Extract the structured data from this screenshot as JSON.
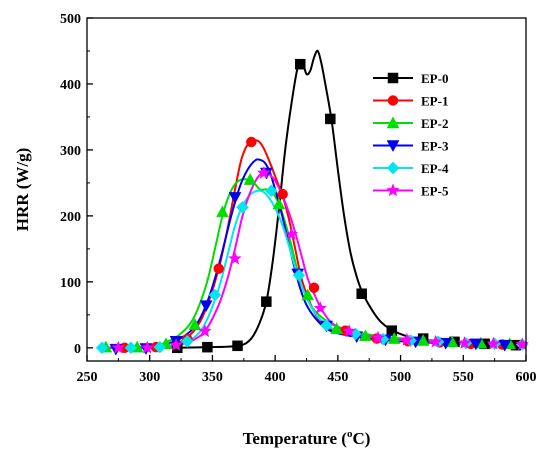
{
  "chart_data": {
    "type": "line",
    "xlabel": "Temperature (",
    "xlabel_sup": "o",
    "xlabel_suffix": "C)",
    "ylabel": "HRR (W/g)",
    "xlim": [
      250,
      600
    ],
    "ylim": [
      -20,
      500
    ],
    "x_ticks": [
      250,
      300,
      350,
      400,
      450,
      500,
      550,
      600
    ],
    "y_ticks": [
      0,
      100,
      200,
      300,
      400,
      500
    ],
    "legend_position": "top-right",
    "grid": false,
    "series": [
      {
        "name": "EP-0",
        "color": "#000000",
        "marker": "square",
        "curve": [
          [
            262,
            0
          ],
          [
            300,
            0
          ],
          [
            320,
            0
          ],
          [
            345,
            1
          ],
          [
            370,
            3
          ],
          [
            380,
            12
          ],
          [
            387,
            35
          ],
          [
            393,
            70
          ],
          [
            398,
            130
          ],
          [
            403,
            210
          ],
          [
            408,
            300
          ],
          [
            413,
            370
          ],
          [
            418,
            425
          ],
          [
            422,
            430
          ],
          [
            425,
            415
          ],
          [
            428,
            420
          ],
          [
            431,
            440
          ],
          [
            434,
            450
          ],
          [
            437,
            430
          ],
          [
            440,
            400
          ],
          [
            445,
            345
          ],
          [
            450,
            270
          ],
          [
            455,
            200
          ],
          [
            460,
            145
          ],
          [
            465,
            108
          ],
          [
            470,
            82
          ],
          [
            478,
            55
          ],
          [
            485,
            38
          ],
          [
            495,
            25
          ],
          [
            510,
            15
          ],
          [
            530,
            10
          ],
          [
            560,
            6
          ],
          [
            597,
            4
          ]
        ],
        "markers": [
          [
            322,
            0
          ],
          [
            346,
            1
          ],
          [
            370,
            3
          ],
          [
            393,
            70
          ],
          [
            420,
            430
          ],
          [
            444,
            347
          ],
          [
            469,
            82
          ],
          [
            493,
            26
          ],
          [
            518,
            14
          ],
          [
            543,
            9
          ],
          [
            567,
            6
          ],
          [
            592,
            4
          ]
        ]
      },
      {
        "name": "EP-1",
        "color": "#ff0000",
        "marker": "circle",
        "curve": [
          [
            262,
            0
          ],
          [
            300,
            1
          ],
          [
            320,
            5
          ],
          [
            335,
            25
          ],
          [
            345,
            60
          ],
          [
            355,
            120
          ],
          [
            362,
            180
          ],
          [
            368,
            240
          ],
          [
            373,
            285
          ],
          [
            378,
            308
          ],
          [
            383,
            314
          ],
          [
            387,
            313
          ],
          [
            391,
            302
          ],
          [
            396,
            280
          ],
          [
            401,
            255
          ],
          [
            406,
            230
          ],
          [
            411,
            195
          ],
          [
            416,
            150
          ],
          [
            421,
            105
          ],
          [
            427,
            72
          ],
          [
            433,
            48
          ],
          [
            440,
            33
          ],
          [
            450,
            25
          ],
          [
            470,
            16
          ],
          [
            490,
            12
          ],
          [
            520,
            8
          ],
          [
            560,
            6
          ],
          [
            597,
            4
          ]
        ],
        "markers": [
          [
            280,
            0
          ],
          [
            305,
            1
          ],
          [
            330,
            13
          ],
          [
            355,
            120
          ],
          [
            381,
            312
          ],
          [
            406,
            233
          ],
          [
            431,
            91
          ],
          [
            456,
            26
          ],
          [
            481,
            14
          ],
          [
            506,
            10
          ],
          [
            531,
            8
          ],
          [
            556,
            6
          ],
          [
            581,
            5
          ]
        ]
      },
      {
        "name": "EP-2",
        "color": "#00dd00",
        "marker": "triangle-up",
        "curve": [
          [
            262,
            0
          ],
          [
            300,
            2
          ],
          [
            315,
            10
          ],
          [
            325,
            22
          ],
          [
            335,
            45
          ],
          [
            345,
            95
          ],
          [
            352,
            150
          ],
          [
            358,
            200
          ],
          [
            363,
            230
          ],
          [
            368,
            248
          ],
          [
            373,
            255
          ],
          [
            378,
            255
          ],
          [
            383,
            250
          ],
          [
            388,
            240
          ],
          [
            393,
            240
          ],
          [
            398,
            235
          ],
          [
            403,
            218
          ],
          [
            408,
            190
          ],
          [
            413,
            155
          ],
          [
            418,
            115
          ],
          [
            423,
            85
          ],
          [
            430,
            60
          ],
          [
            440,
            42
          ],
          [
            450,
            32
          ],
          [
            470,
            22
          ],
          [
            490,
            16
          ],
          [
            520,
            12
          ],
          [
            560,
            8
          ],
          [
            597,
            6
          ]
        ],
        "markers": [
          [
            265,
            1
          ],
          [
            290,
            1
          ],
          [
            313,
            6
          ],
          [
            336,
            35
          ],
          [
            358,
            206
          ],
          [
            380,
            255
          ],
          [
            403,
            218
          ],
          [
            426,
            80
          ],
          [
            449,
            29
          ],
          [
            472,
            18
          ],
          [
            495,
            14
          ],
          [
            518,
            11
          ],
          [
            541,
            9
          ],
          [
            564,
            7
          ],
          [
            587,
            6
          ]
        ]
      },
      {
        "name": "EP-3",
        "color": "#0000ee",
        "marker": "triangle-down",
        "curve": [
          [
            262,
            0
          ],
          [
            300,
            1
          ],
          [
            320,
            10
          ],
          [
            335,
            30
          ],
          [
            345,
            65
          ],
          [
            355,
            125
          ],
          [
            365,
            200
          ],
          [
            372,
            245
          ],
          [
            378,
            270
          ],
          [
            384,
            284
          ],
          [
            388,
            285
          ],
          [
            392,
            280
          ],
          [
            396,
            265
          ],
          [
            400,
            240
          ],
          [
            405,
            205
          ],
          [
            410,
            165
          ],
          [
            415,
            125
          ],
          [
            420,
            90
          ],
          [
            425,
            65
          ],
          [
            432,
            45
          ],
          [
            440,
            30
          ],
          [
            450,
            22
          ],
          [
            470,
            15
          ],
          [
            500,
            10
          ],
          [
            540,
            7
          ],
          [
            597,
            4
          ]
        ],
        "markers": [
          [
            273,
            -2
          ],
          [
            297,
            -1
          ],
          [
            321,
            10
          ],
          [
            345,
            64
          ],
          [
            368,
            228
          ],
          [
            393,
            265
          ],
          [
            418,
            112
          ],
          [
            441,
            33
          ],
          [
            465,
            17
          ],
          [
            488,
            12
          ],
          [
            512,
            9
          ],
          [
            536,
            7
          ],
          [
            560,
            6
          ],
          [
            583,
            4
          ]
        ]
      },
      {
        "name": "EP-4",
        "color": "#00e5ee",
        "marker": "diamond",
        "curve": [
          [
            262,
            0
          ],
          [
            300,
            0
          ],
          [
            320,
            5
          ],
          [
            335,
            15
          ],
          [
            345,
            40
          ],
          [
            355,
            90
          ],
          [
            362,
            140
          ],
          [
            368,
            185
          ],
          [
            374,
            215
          ],
          [
            380,
            232
          ],
          [
            386,
            238
          ],
          [
            391,
            236
          ],
          [
            396,
            225
          ],
          [
            401,
            208
          ],
          [
            406,
            185
          ],
          [
            411,
            155
          ],
          [
            416,
            122
          ],
          [
            421,
            95
          ],
          [
            426,
            72
          ],
          [
            432,
            52
          ],
          [
            440,
            36
          ],
          [
            450,
            26
          ],
          [
            470,
            18
          ],
          [
            500,
            12
          ],
          [
            540,
            8
          ],
          [
            597,
            5
          ]
        ],
        "markers": [
          [
            262,
            0
          ],
          [
            285,
            0
          ],
          [
            308,
            1
          ],
          [
            330,
            10
          ],
          [
            352,
            80
          ],
          [
            374,
            213
          ],
          [
            397,
            238
          ],
          [
            419,
            110
          ],
          [
            441,
            34
          ],
          [
            464,
            21
          ],
          [
            486,
            13
          ],
          [
            508,
            11
          ],
          [
            530,
            9
          ],
          [
            552,
            7
          ],
          [
            575,
            6
          ],
          [
            597,
            5
          ]
        ]
      },
      {
        "name": "EP-5",
        "color": "#ff00ff",
        "marker": "star",
        "curve": [
          [
            262,
            0
          ],
          [
            300,
            0
          ],
          [
            320,
            3
          ],
          [
            335,
            12
          ],
          [
            345,
            28
          ],
          [
            355,
            65
          ],
          [
            362,
            105
          ],
          [
            368,
            150
          ],
          [
            374,
            200
          ],
          [
            380,
            235
          ],
          [
            386,
            258
          ],
          [
            391,
            265
          ],
          [
            396,
            262
          ],
          [
            401,
            250
          ],
          [
            406,
            230
          ],
          [
            411,
            205
          ],
          [
            416,
            175
          ],
          [
            421,
            140
          ],
          [
            426,
            105
          ],
          [
            432,
            78
          ],
          [
            438,
            55
          ],
          [
            445,
            38
          ],
          [
            455,
            27
          ],
          [
            470,
            19
          ],
          [
            500,
            12
          ],
          [
            540,
            8
          ],
          [
            597,
            5
          ]
        ],
        "markers": [
          [
            275,
            0
          ],
          [
            298,
            0
          ],
          [
            321,
            4
          ],
          [
            344,
            25
          ],
          [
            368,
            135
          ],
          [
            391,
            265
          ],
          [
            413,
            172
          ],
          [
            436,
            60
          ],
          [
            459,
            25
          ],
          [
            482,
            15
          ],
          [
            505,
            12
          ],
          [
            528,
            9
          ],
          [
            551,
            7
          ],
          [
            574,
            6
          ],
          [
            597,
            5
          ]
        ]
      }
    ]
  }
}
